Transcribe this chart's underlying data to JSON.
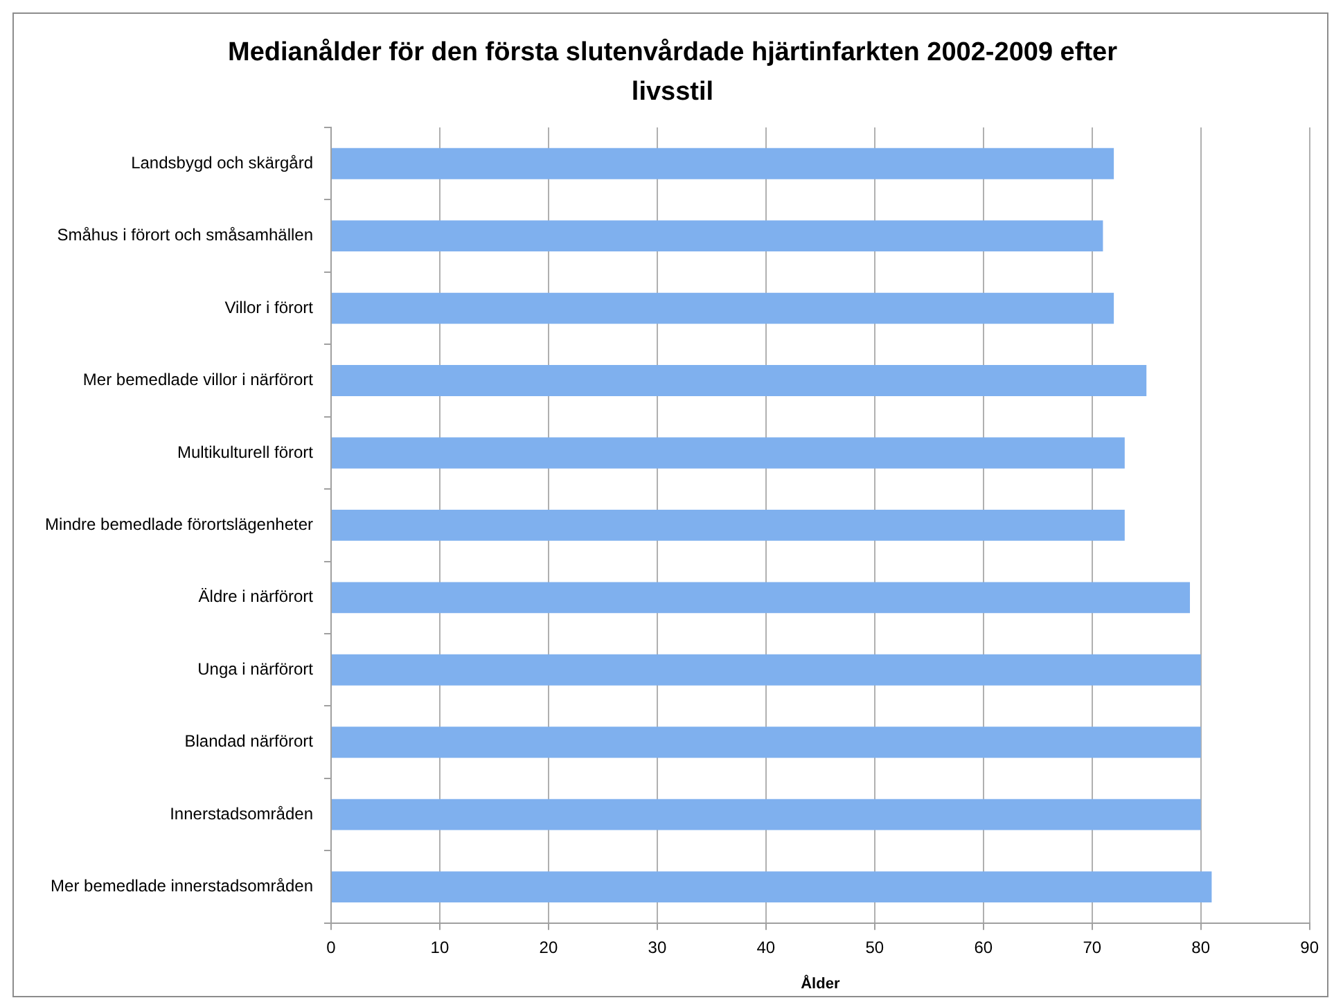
{
  "chart_data": {
    "type": "bar",
    "orientation": "horizontal",
    "title": "Medianålder för den första slutenvårdade hjärtinfarkten 2002-2009 efter livsstil",
    "xlabel": "Ålder",
    "categories": [
      "Landsbygd och skärgård",
      "Småhus i förort och småsamhällen",
      "Villor i förort",
      "Mer bemedlade villor i närförort",
      "Multikulturell förort",
      "Mindre bemedlade förortslägenheter",
      "Äldre i närförort",
      "Unga i närförort",
      "Blandad närförort",
      "Innerstadsområden",
      "Mer bemedlade innerstadsområden"
    ],
    "values": [
      72,
      71,
      72,
      75,
      73,
      73,
      79,
      80,
      80,
      80,
      81
    ],
    "color": "#7fb0ee",
    "xlim": [
      0,
      90
    ],
    "xticks": [
      0,
      10,
      20,
      30,
      40,
      50,
      60,
      70,
      80,
      90
    ],
    "grid": "x"
  }
}
